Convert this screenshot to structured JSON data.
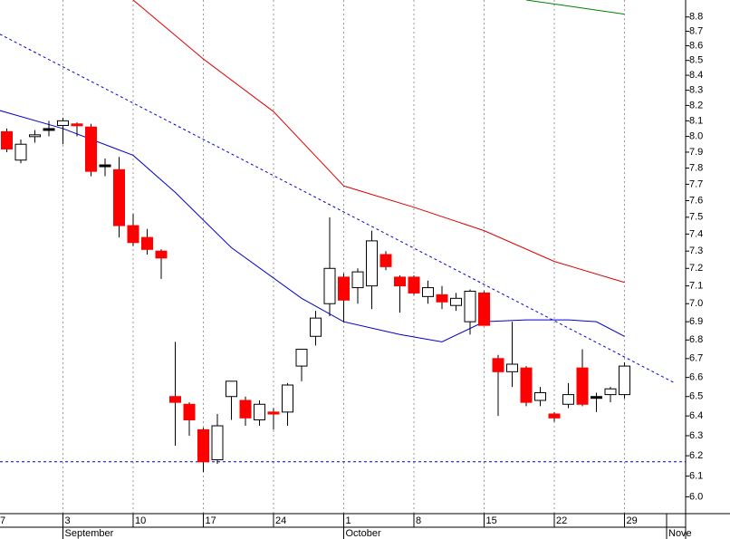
{
  "chart_data": {
    "type": "candlestick",
    "categories": [
      "7",
      null,
      null,
      null,
      null,
      "3",
      null,
      null,
      null,
      null,
      "10",
      null,
      null,
      null,
      null,
      "17",
      null,
      null,
      null,
      null,
      "24",
      null,
      null,
      null,
      null,
      "1",
      null,
      null,
      null,
      null,
      "8",
      null,
      null,
      null,
      null,
      "15",
      null,
      null,
      null,
      null,
      "22",
      null,
      null,
      null,
      null,
      "29"
    ],
    "month_labels": [
      {
        "label": "September",
        "at": 5
      },
      {
        "label": "October",
        "at": 25
      },
      {
        "label": "Nove",
        "at": 48
      }
    ],
    "open": [
      null,
      8.03,
      7.85,
      8.0,
      8.05,
      8.07,
      8.08,
      8.06,
      7.82,
      7.79,
      7.45,
      7.38,
      7.3,
      6.5,
      6.46,
      6.33,
      6.18,
      6.5,
      6.48,
      6.38,
      6.42,
      6.42,
      6.66,
      6.82,
      7.0,
      7.15,
      7.09,
      7.1,
      7.28,
      7.15,
      7.15,
      7.04,
      7.05,
      6.99,
      6.9,
      7.06,
      6.7,
      6.63,
      6.65,
      6.48,
      6.41,
      6.46,
      6.65,
      6.5,
      6.51,
      6.51
    ],
    "high": [
      null,
      8.05,
      7.98,
      8.04,
      8.1,
      8.12,
      8.09,
      8.08,
      7.86,
      7.87,
      7.52,
      7.43,
      7.31,
      6.79,
      6.47,
      6.34,
      6.41,
      6.58,
      6.5,
      6.48,
      6.44,
      6.57,
      6.75,
      6.96,
      7.5,
      7.17,
      7.2,
      7.42,
      7.3,
      7.16,
      7.16,
      7.13,
      7.1,
      7.06,
      7.08,
      7.07,
      6.72,
      6.9,
      6.66,
      6.55,
      6.42,
      6.57,
      6.75,
      6.52,
      6.55,
      6.68
    ],
    "low": [
      null,
      7.9,
      7.83,
      7.96,
      8.0,
      7.95,
      8.0,
      7.75,
      7.75,
      7.38,
      7.33,
      7.28,
      7.14,
      6.25,
      6.3,
      6.12,
      6.16,
      6.38,
      6.35,
      6.35,
      6.33,
      6.35,
      6.58,
      6.77,
      6.93,
      6.9,
      7.0,
      6.97,
      7.19,
      6.95,
      7.05,
      7.0,
      6.97,
      6.96,
      6.83,
      6.88,
      6.4,
      6.55,
      6.45,
      6.45,
      6.37,
      6.44,
      6.45,
      6.42,
      6.47,
      6.49
    ],
    "close": [
      null,
      7.92,
      7.95,
      8.01,
      8.05,
      8.1,
      8.07,
      7.78,
      7.82,
      7.45,
      7.35,
      7.31,
      7.26,
      6.47,
      6.38,
      6.17,
      6.35,
      6.58,
      6.39,
      6.46,
      6.41,
      6.56,
      6.75,
      6.92,
      7.2,
      7.02,
      7.18,
      7.36,
      7.21,
      7.1,
      7.06,
      7.09,
      7.01,
      7.03,
      7.07,
      6.88,
      6.63,
      6.67,
      6.47,
      6.52,
      6.39,
      6.51,
      6.46,
      6.5,
      6.54,
      6.66
    ],
    "up_color": "#ffffff",
    "down_color": "#ff0000",
    "flat_color": "#000000",
    "series": [
      {
        "color": "#0000cc",
        "x": [
          0,
          5,
          10,
          13,
          17,
          22,
          25,
          29,
          32,
          35,
          38,
          41,
          43,
          45
        ],
        "values": [
          8.18,
          8.05,
          7.88,
          7.65,
          7.32,
          7.03,
          6.9,
          6.83,
          6.79,
          6.9,
          6.91,
          6.91,
          6.9,
          6.82
        ]
      },
      {
        "color": "#dd0000",
        "x": [
          10,
          15,
          20,
          25,
          30,
          35,
          40,
          45
        ],
        "values": [
          8.92,
          8.51,
          8.16,
          7.69,
          7.56,
          7.42,
          7.24,
          7.12
        ]
      },
      {
        "color": "#008000",
        "x": [
          38,
          45
        ],
        "values": [
          8.92,
          8.82
        ]
      },
      {
        "color": "#0000cc",
        "dashed": true,
        "x": [
          0.5,
          48.6
        ],
        "values": [
          8.68,
          6.57
        ]
      }
    ],
    "hline": {
      "value": 6.17,
      "color": "#0000cc",
      "dashed": true
    },
    "log_scale": true,
    "ylim": [
      5.92,
      8.92
    ],
    "yticks": [
      {
        "value": 6.0,
        "label": "6.0"
      },
      6.1,
      6.2,
      6.3,
      6.4,
      6.5,
      6.6,
      6.7,
      6.8,
      6.9,
      {
        "value": 7.0,
        "label": "7.0"
      },
      7.1,
      7.2,
      7.3,
      7.4,
      7.5,
      7.6,
      7.7,
      7.8,
      7.9,
      {
        "value": 8.0,
        "label": "8.0"
      },
      8.1,
      8.2,
      8.3,
      8.4,
      8.5,
      8.6,
      8.7,
      8.8
    ],
    "grid": true
  }
}
